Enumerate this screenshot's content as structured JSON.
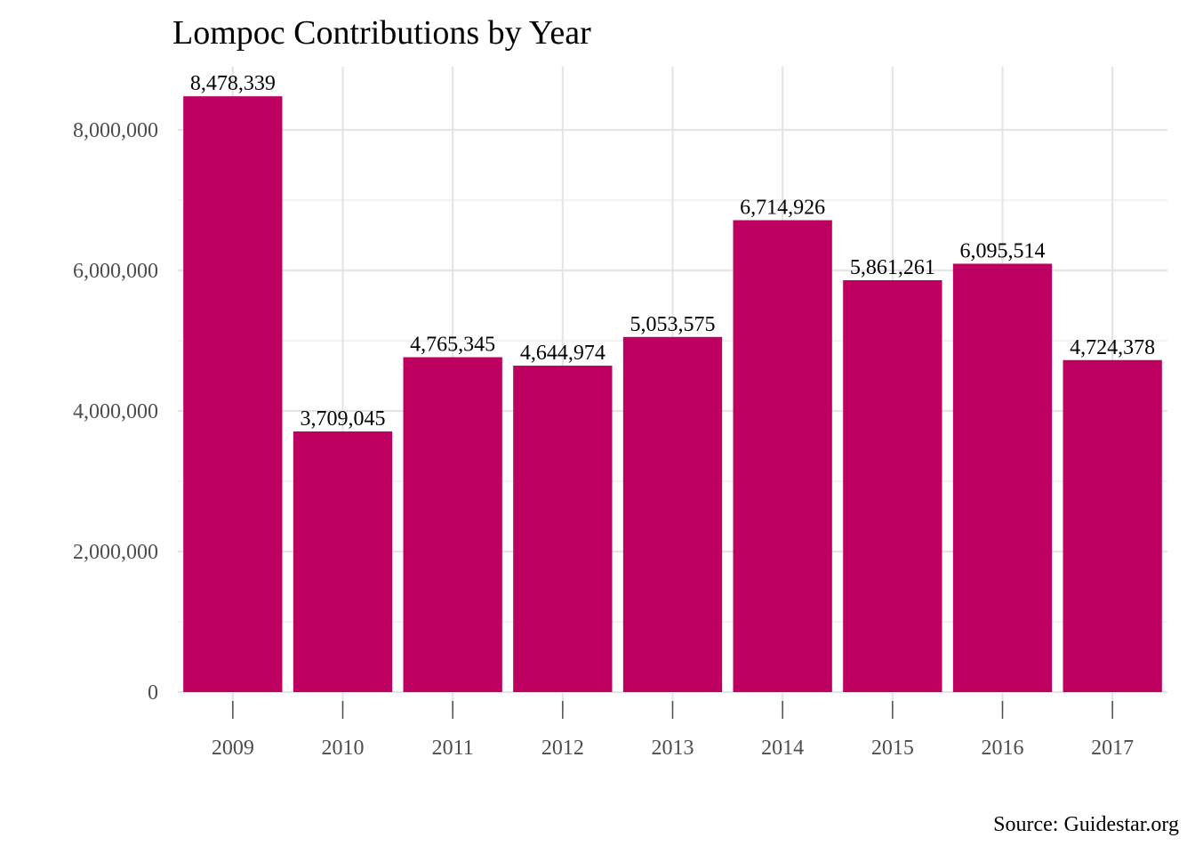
{
  "chart_data": {
    "type": "bar",
    "title": "Lompoc Contributions by Year",
    "caption": "Source: Guidestar.org",
    "xlabel": "",
    "ylabel": "",
    "categories": [
      "2009",
      "2010",
      "2011",
      "2012",
      "2013",
      "2014",
      "2015",
      "2016",
      "2017"
    ],
    "values": [
      8478339,
      3709045,
      4765345,
      4644974,
      5053575,
      6714926,
      5861261,
      6095514,
      4724378
    ],
    "data_labels": [
      "8,478,339",
      "3,709,045",
      "4,765,345",
      "4,644,974",
      "5,053,575",
      "6,714,926",
      "5,861,261",
      "6,095,514",
      "4,724,378"
    ],
    "y_ticks": [
      0,
      2000000,
      4000000,
      6000000,
      8000000
    ],
    "y_tick_labels": [
      "0",
      "2,000,000",
      "4,000,000",
      "6,000,000",
      "8,000,000"
    ],
    "ylim": [
      0,
      8900000
    ],
    "grid": true,
    "legend": "none",
    "colors": {
      "bar": "#BE0060",
      "grid": "#e5e5e5",
      "tick_text": "#4d4d4d"
    }
  }
}
